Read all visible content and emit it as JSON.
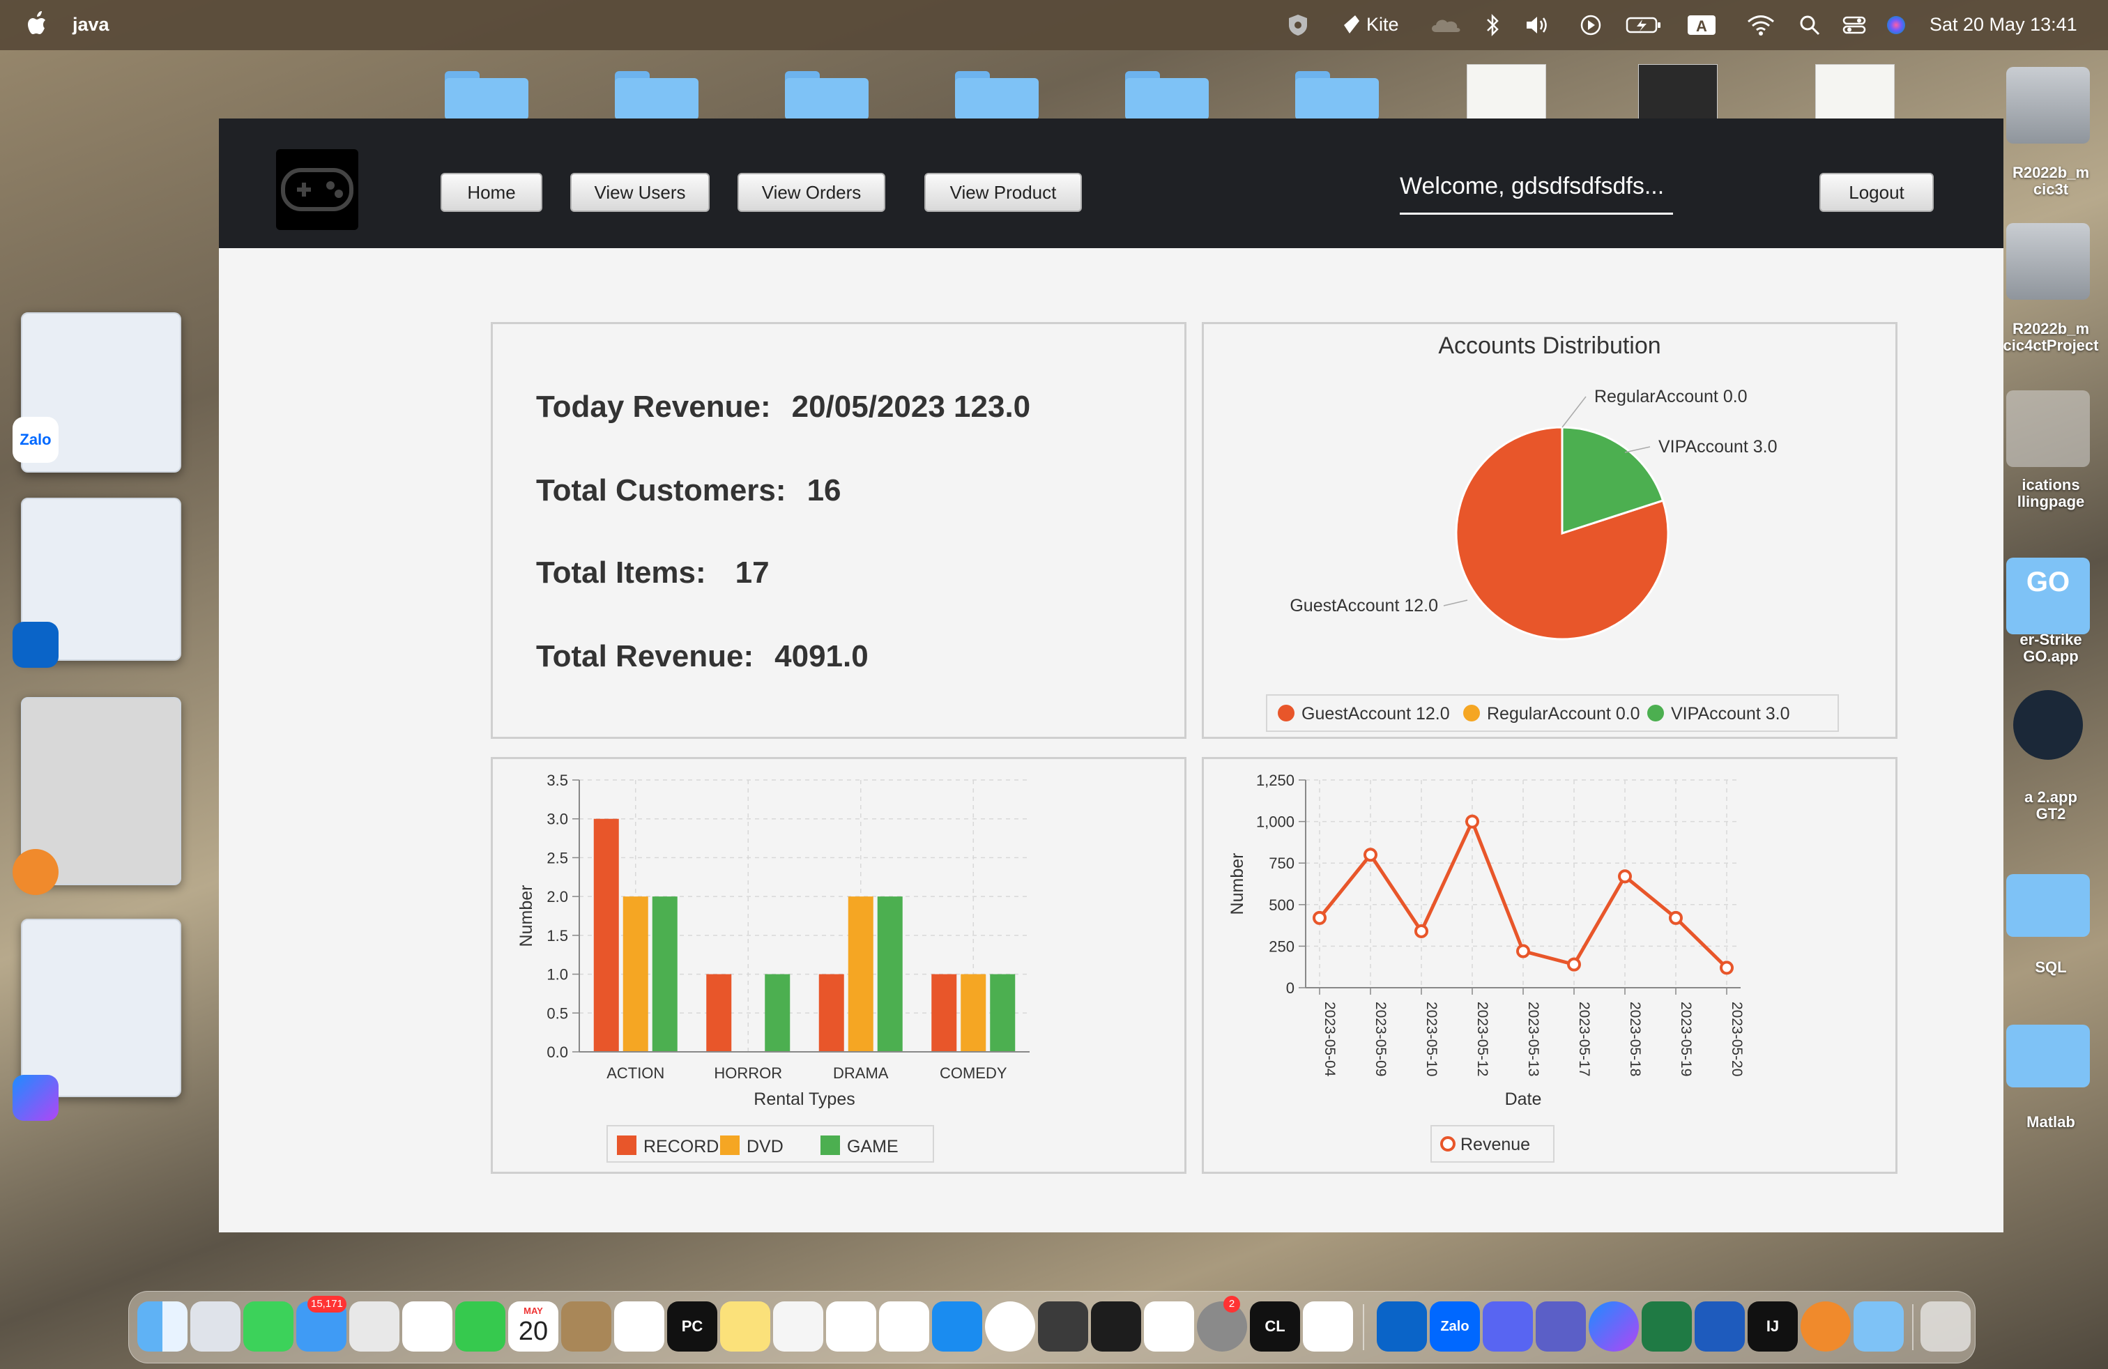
{
  "menubar": {
    "app_name": "java",
    "kite_label": "Kite",
    "input_indicator": "A",
    "clock": "Sat 20 May  13:41"
  },
  "desktop": {
    "right_items": [
      {
        "label": "R2022b_m\ncic3t"
      },
      {
        "label": "R2022b_m\ncic4ctProject"
      },
      {
        "label": "ications\nllingpage"
      },
      {
        "label": "er-Strike\nGO.app"
      },
      {
        "label": "a 2.app\nGT2"
      },
      {
        "label": "SQL"
      },
      {
        "label": "Matlab"
      }
    ],
    "go_badge": "GO",
    "zalo_label": "Zalo"
  },
  "app": {
    "nav": {
      "home": "Home",
      "view_users": "View Users",
      "view_orders": "View Orders",
      "view_product": "View Product",
      "welcome": "Welcome, gdsdfsdfsdfs...",
      "logout": "Logout"
    },
    "stats": {
      "today_revenue_label": "Today Revenue:",
      "today_revenue_value": "20/05/2023 123.0",
      "total_customers_label": "Total Customers:",
      "total_customers_value": "16",
      "total_items_label": "Total Items:",
      "total_items_value": "17",
      "total_revenue_label": "Total Revenue:",
      "total_revenue_value": "4091.0"
    }
  },
  "chart_data": [
    {
      "type": "pie",
      "title": "Accounts Distribution",
      "labels": [
        "GuestAccount 12.0",
        "RegularAccount 0.0",
        "VIPAccount 3.0"
      ],
      "values": [
        12.0,
        0.0,
        3.0
      ],
      "colors": [
        "#e8562a",
        "#f5a623",
        "#4caf50"
      ],
      "legend": [
        "GuestAccount 12.0",
        "RegularAccount 0.0",
        "VIPAccount 3.0"
      ],
      "legend_position": "bottom"
    },
    {
      "type": "bar",
      "categories": [
        "ACTION",
        "HORROR",
        "DRAMA",
        "COMEDY"
      ],
      "series": [
        {
          "name": "RECORD",
          "values": [
            3,
            1,
            1,
            1
          ],
          "color": "#e8562a"
        },
        {
          "name": "DVD",
          "values": [
            2,
            0,
            2,
            1
          ],
          "color": "#f5a623"
        },
        {
          "name": "GAME",
          "values": [
            2,
            1,
            2,
            1
          ],
          "color": "#4caf50"
        }
      ],
      "xlabel": "Rental Types",
      "ylabel": "Number",
      "ylim": [
        0,
        3.5
      ],
      "yticks": [
        "0.0",
        "0.5",
        "1.0",
        "1.5",
        "2.0",
        "2.5",
        "3.0",
        "3.5"
      ],
      "grid": true,
      "legend_position": "bottom"
    },
    {
      "type": "line",
      "x": [
        "2023-05-04",
        "2023-05-09",
        "2023-05-10",
        "2023-05-12",
        "2023-05-13",
        "2023-05-17",
        "2023-05-18",
        "2023-05-19",
        "2023-05-20"
      ],
      "series": [
        {
          "name": "Revenue",
          "values": [
            420,
            800,
            340,
            1000,
            220,
            140,
            670,
            420,
            120
          ],
          "color": "#e8562a"
        }
      ],
      "xlabel": "Date",
      "ylabel": "Number",
      "ylim": [
        0,
        1250
      ],
      "yticks": [
        "0",
        "250",
        "500",
        "750",
        "1,000",
        "1,250"
      ],
      "grid": true,
      "legend_position": "bottom"
    }
  ],
  "dock": {
    "mail_badge": "15,171",
    "calendar_month": "MAY",
    "calendar_day": "20",
    "settings_badge": "2",
    "pycharm_label": "PC",
    "clion_label": "CL",
    "intellij_label": "IJ",
    "zalo_label": "Zalo"
  }
}
